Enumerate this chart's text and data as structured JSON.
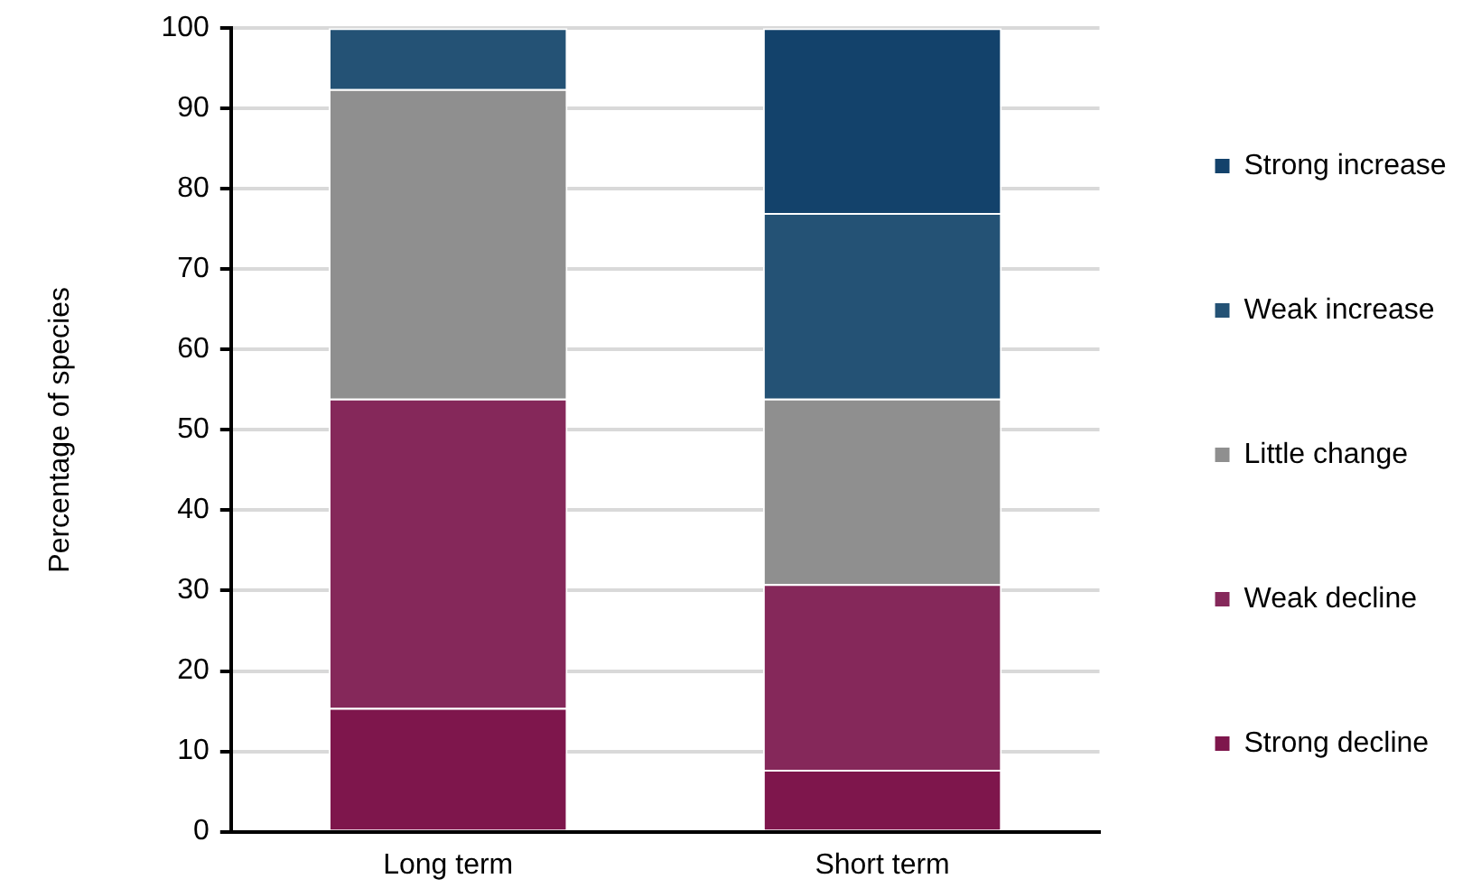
{
  "chart_data": {
    "type": "bar",
    "stacked": true,
    "ylabel": "Percentage of species",
    "categories": [
      "Long term",
      "Short term"
    ],
    "series": [
      {
        "name": "Strong decline",
        "color": "#7e164c",
        "values": [
          15.4,
          7.7
        ]
      },
      {
        "name": "Weak decline",
        "color": "#85285a",
        "values": [
          38.5,
          23.1
        ]
      },
      {
        "name": "Little change",
        "color": "#8f8f8f",
        "values": [
          38.5,
          23.1
        ]
      },
      {
        "name": "Weak increase",
        "color": "#245275",
        "values": [
          7.6,
          23.1
        ]
      },
      {
        "name": "Strong increase",
        "color": "#13426b",
        "values": [
          0,
          23
        ]
      }
    ],
    "ylim": [
      0,
      100
    ],
    "yticks": [
      0,
      10,
      20,
      30,
      40,
      50,
      60,
      70,
      80,
      90,
      100
    ],
    "grid": "y",
    "legend": "right"
  }
}
